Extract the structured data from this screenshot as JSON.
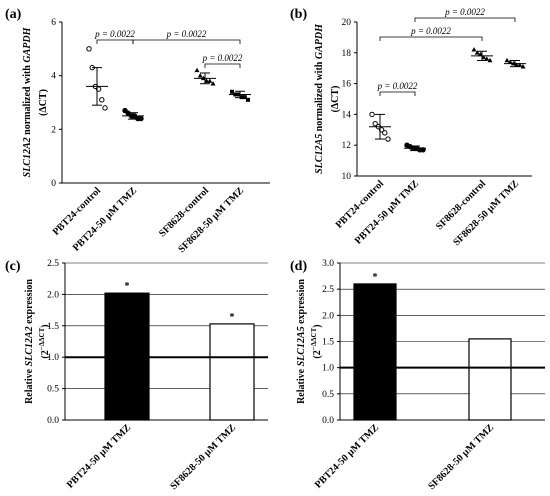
{
  "chart_data": [
    {
      "type": "scatter",
      "panel_label": "(a)",
      "y_label": [
        "SLC12A2",
        " normalized with ",
        "GAPDH"
      ],
      "y_label_italic": [
        0,
        2
      ],
      "y_label_2": [
        "(ΔCT)"
      ],
      "categories": [
        "PBT24-control",
        "PBT24-50 μM TMZ",
        "SF8628-control",
        "SF8628-50 μM TMZ"
      ],
      "values": [
        [
          5.0,
          4.3,
          3.6,
          3.5,
          3.1,
          2.8
        ],
        [
          2.7,
          2.6,
          2.5,
          2.5,
          2.4,
          2.4
        ],
        [
          4.2,
          4.0,
          3.9,
          3.8,
          3.8,
          3.7
        ],
        [
          3.4,
          3.3,
          3.3,
          3.2,
          3.2,
          3.1
        ]
      ],
      "means": [
        3.6,
        2.5,
        3.9,
        3.3
      ],
      "sd": [
        0.7,
        0.12,
        0.2,
        0.12
      ],
      "markers": [
        "circle",
        "circle",
        "triangle",
        "square"
      ],
      "color": "#000000",
      "ylim": [
        0,
        6
      ],
      "yticks": [
        0,
        2,
        4,
        6
      ],
      "annotations": [
        "p = 0.0022",
        "p = 0.0022",
        "p = 0.0022"
      ]
    },
    {
      "type": "scatter",
      "panel_label": "(b)",
      "y_label": [
        "SLC12A5",
        " normalized with ",
        "GAPDH"
      ],
      "y_label_italic": [
        0,
        2
      ],
      "y_label_2": [
        "(ΔCT)"
      ],
      "categories": [
        "PBT24-control",
        "PBT24-50 μM TMZ",
        "SF8628-control",
        "SF8628-50 μM TMZ"
      ],
      "values": [
        [
          14.0,
          13.4,
          13.2,
          13.0,
          12.8,
          12.4
        ],
        [
          12.0,
          11.9,
          11.8,
          11.8,
          11.7,
          11.7
        ],
        [
          18.2,
          18.0,
          17.9,
          17.7,
          17.6,
          17.5
        ],
        [
          17.5,
          17.4,
          17.3,
          17.2,
          17.2,
          17.1
        ]
      ],
      "means": [
        13.2,
        11.8,
        17.8,
        17.3
      ],
      "sd": [
        0.8,
        0.15,
        0.3,
        0.2
      ],
      "markers": [
        "circle",
        "circle",
        "triangle",
        "triangle"
      ],
      "color": "#000000",
      "ylim": [
        10,
        20
      ],
      "yticks": [
        10,
        12,
        14,
        16,
        18,
        20
      ],
      "annotations": [
        "p = 0.0022",
        "p = 0.0022",
        "p = 0.0022"
      ]
    },
    {
      "type": "bar",
      "panel_label": "(c)",
      "y_label": [
        "Relative ",
        "SLC12A2",
        " expression"
      ],
      "y_label_italic": [
        1
      ],
      "y_label_2": [
        "(2",
        "−ΔΔCT",
        ")"
      ],
      "categories": [
        "PBT24-50 μM TMZ",
        "SF8628-50 μM TMZ"
      ],
      "values": [
        2.02,
        1.53
      ],
      "colors": [
        "#000000",
        "#ffffff"
      ],
      "reference_line": 1,
      "ylim": [
        0,
        2.5
      ],
      "yticks": [
        {
          "value": 0,
          "label": "0.0"
        },
        0.5,
        {
          "value": 1,
          "label": "1.0"
        },
        1.5,
        {
          "value": 2,
          "label": "2.0"
        },
        2.5
      ],
      "grid": true,
      "annotations": [
        "*",
        "*"
      ]
    },
    {
      "type": "bar",
      "panel_label": "(d)",
      "y_label": [
        "Relative ",
        "SLC12A5",
        " expression"
      ],
      "y_label_italic": [
        1
      ],
      "y_label_2": [
        "(2",
        "−ΔΔCT",
        ")"
      ],
      "categories": [
        "PBT24-50 μM TMZ",
        "SF8628-50 μM TMZ"
      ],
      "values": [
        2.6,
        1.55
      ],
      "colors": [
        "#000000",
        "#ffffff"
      ],
      "reference_line": 1,
      "ylim": [
        0,
        3
      ],
      "yticks": [
        {
          "value": 0,
          "label": "0.0"
        },
        0.5,
        {
          "value": 1,
          "label": "1.0"
        },
        1.5,
        {
          "value": 2,
          "label": "2.0"
        },
        2.5,
        {
          "value": 3,
          "label": "3.0"
        }
      ],
      "grid": true,
      "annotations": [
        "*"
      ]
    }
  ]
}
